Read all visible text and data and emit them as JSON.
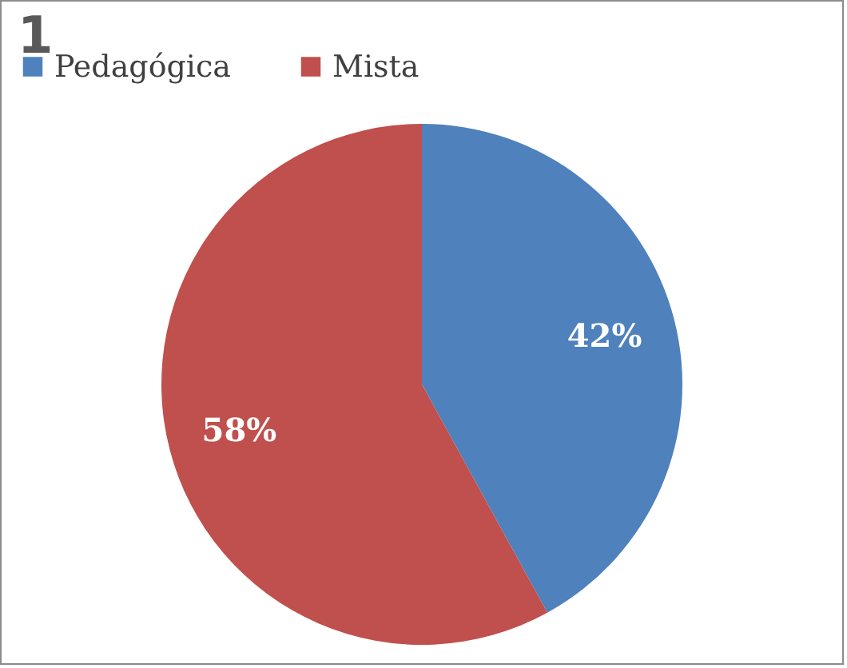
{
  "chart_data": {
    "type": "pie",
    "title": "1",
    "categories": [
      "Pedagógica",
      "Mista"
    ],
    "values": [
      42,
      58
    ],
    "colors": [
      "#4f81bd",
      "#c0504d"
    ],
    "value_labels": [
      "42%",
      "58%"
    ],
    "legend": "top"
  }
}
